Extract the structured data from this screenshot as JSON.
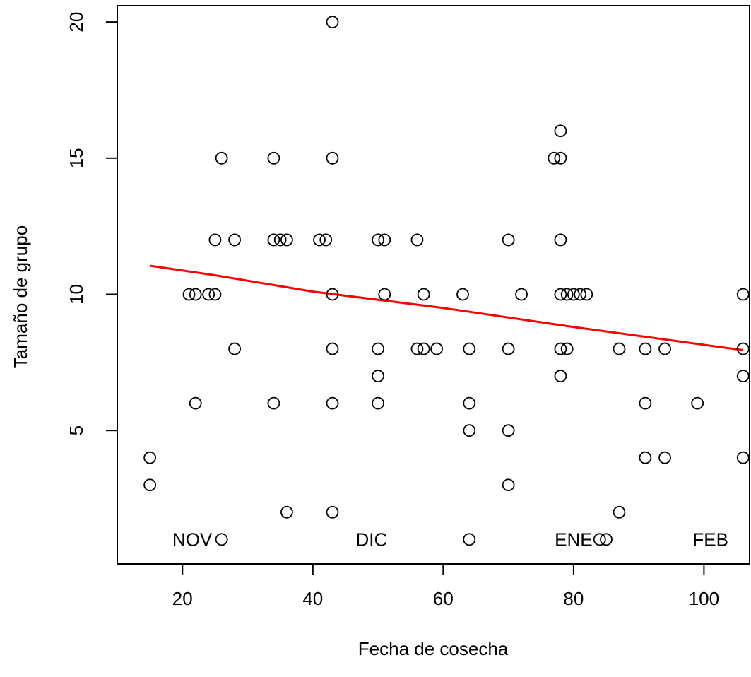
{
  "chart_data": {
    "type": "scatter",
    "xlabel": "Fecha de cosecha",
    "ylabel": "Tamaño de grupo",
    "xlim": [
      10,
      107
    ],
    "ylim": [
      0.1,
      20.6
    ],
    "x_ticks": [
      20,
      40,
      60,
      80,
      100
    ],
    "y_ticks": [
      5,
      10,
      15,
      20
    ],
    "grid": false,
    "legend": "none",
    "marker": "open-circle",
    "points": [
      [
        15,
        4
      ],
      [
        15,
        3
      ],
      [
        21,
        10
      ],
      [
        22,
        10
      ],
      [
        22,
        6
      ],
      [
        24,
        10
      ],
      [
        25,
        10
      ],
      [
        25,
        12
      ],
      [
        26,
        15
      ],
      [
        26,
        1
      ],
      [
        28,
        12
      ],
      [
        28,
        8
      ],
      [
        34,
        15
      ],
      [
        34,
        12
      ],
      [
        34,
        6
      ],
      [
        35,
        12
      ],
      [
        36,
        12
      ],
      [
        36,
        2
      ],
      [
        41,
        12
      ],
      [
        42,
        12
      ],
      [
        43,
        20
      ],
      [
        43,
        15
      ],
      [
        43,
        10
      ],
      [
        43,
        8
      ],
      [
        43,
        6
      ],
      [
        43,
        2
      ],
      [
        50,
        12
      ],
      [
        50,
        8
      ],
      [
        50,
        7
      ],
      [
        50,
        6
      ],
      [
        51,
        12
      ],
      [
        51,
        10
      ],
      [
        56,
        12
      ],
      [
        56,
        8
      ],
      [
        57,
        10
      ],
      [
        57,
        8
      ],
      [
        59,
        8
      ],
      [
        63,
        10
      ],
      [
        64,
        8
      ],
      [
        64,
        6
      ],
      [
        64,
        5
      ],
      [
        64,
        1
      ],
      [
        70,
        12
      ],
      [
        70,
        8
      ],
      [
        70,
        5
      ],
      [
        70,
        3
      ],
      [
        72,
        10
      ],
      [
        77,
        15
      ],
      [
        78,
        16
      ],
      [
        78,
        15
      ],
      [
        78,
        12
      ],
      [
        78,
        10
      ],
      [
        78,
        8
      ],
      [
        78,
        7
      ],
      [
        79,
        8
      ],
      [
        79,
        10
      ],
      [
        80,
        10
      ],
      [
        81,
        10
      ],
      [
        82,
        10
      ],
      [
        84,
        1
      ],
      [
        85,
        1
      ],
      [
        87,
        8
      ],
      [
        87,
        2
      ],
      [
        91,
        8
      ],
      [
        91,
        6
      ],
      [
        91,
        4
      ],
      [
        94,
        8
      ],
      [
        94,
        4
      ],
      [
        99,
        6
      ],
      [
        106,
        10
      ],
      [
        106,
        8
      ],
      [
        106,
        7
      ],
      [
        106,
        4
      ]
    ],
    "trend_line": {
      "color": "#ff0000",
      "points": [
        [
          15,
          11.05
        ],
        [
          25,
          10.7
        ],
        [
          40,
          10.1
        ],
        [
          60,
          9.5
        ],
        [
          80,
          8.8
        ],
        [
          106,
          7.95
        ]
      ]
    },
    "annotations": [
      {
        "text": "NOV",
        "x": 21.5,
        "y": 1
      },
      {
        "text": "DIC",
        "x": 49,
        "y": 1
      },
      {
        "text": "ENE",
        "x": 80,
        "y": 1
      },
      {
        "text": "FEB",
        "x": 101,
        "y": 1
      }
    ]
  }
}
